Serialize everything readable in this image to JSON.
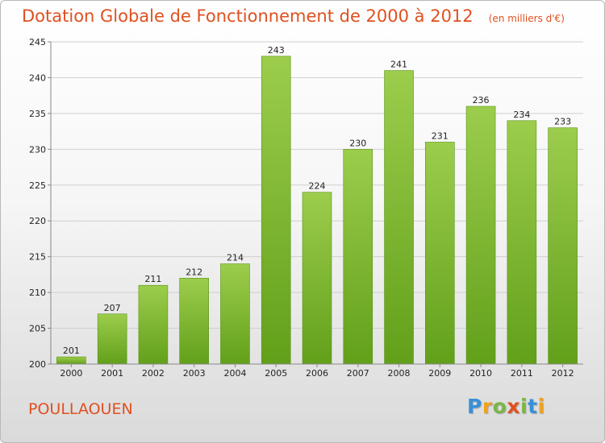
{
  "header": {
    "title": "Dotation Globale de Fonctionnement de 2000 à 2012",
    "subtitle": "(en milliers d'€)"
  },
  "footer": {
    "place": "POULLAOUEN",
    "logo_letters": [
      {
        "ch": "P",
        "color": "#3a8fd6"
      },
      {
        "ch": "r",
        "color": "#f0a21e"
      },
      {
        "ch": "o",
        "color": "#7ab648"
      },
      {
        "ch": "x",
        "color": "#e0501f"
      },
      {
        "ch": "i",
        "color": "#7ab648"
      },
      {
        "ch": "t",
        "color": "#3a8fd6"
      },
      {
        "ch": "i",
        "color": "#f0a21e"
      }
    ]
  },
  "chart_data": {
    "type": "bar",
    "categories": [
      "2000",
      "2001",
      "2002",
      "2003",
      "2004",
      "2005",
      "2006",
      "2007",
      "2008",
      "2009",
      "2010",
      "2011",
      "2012"
    ],
    "values": [
      201,
      207,
      211,
      212,
      214,
      243,
      224,
      230,
      241,
      231,
      236,
      234,
      233
    ],
    "ylim": [
      200,
      245
    ],
    "yticks": [
      200,
      205,
      210,
      215,
      220,
      225,
      230,
      235,
      240,
      245
    ],
    "grid": true,
    "bar_color": "#8cc43c",
    "bar_color_dark": "#66a01c"
  }
}
